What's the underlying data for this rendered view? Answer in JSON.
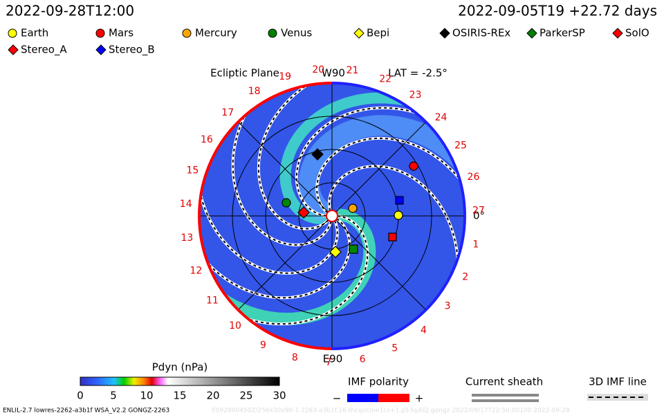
{
  "header": {
    "time": "2022-09-28T12:00",
    "run": "2022-09-05T19 +22.72 days"
  },
  "legend": [
    {
      "label": "Earth",
      "shape": "circle",
      "color": "#ffff00"
    },
    {
      "label": "Mars",
      "shape": "circle",
      "color": "#ff0000"
    },
    {
      "label": "Mercury",
      "shape": "circle",
      "color": "#ffa500"
    },
    {
      "label": "Venus",
      "shape": "circle",
      "color": "#008000"
    },
    {
      "label": "Bepi",
      "shape": "diamond",
      "color": "#ffff00"
    },
    {
      "label": "OSIRIS-REx",
      "shape": "diamond",
      "color": "#000000"
    },
    {
      "label": "ParkerSP",
      "shape": "diamond",
      "color": "#008000"
    },
    {
      "label": "SolO",
      "shape": "diamond",
      "color": "#ff0000"
    },
    {
      "label": "Stereo_A",
      "shape": "diamond",
      "color": "#ff0000"
    },
    {
      "label": "Stereo_B",
      "shape": "diamond",
      "color": "#0000ff"
    }
  ],
  "plot": {
    "title": "Ecliptic Plane",
    "top": "W90",
    "lat": "LAT = -2.5°",
    "bottom": "E90",
    "right": "0°",
    "longitudes": [
      "1",
      "2",
      "3",
      "4",
      "5",
      "6",
      "7",
      "8",
      "9",
      "10",
      "11",
      "12",
      "13",
      "14",
      "15",
      "16",
      "17",
      "18",
      "19",
      "20",
      "21",
      "22",
      "23",
      "24",
      "25",
      "26",
      "27"
    ]
  },
  "colorbar": {
    "title": "Pdyn (nPa)",
    "ticks": [
      "0",
      "5",
      "10",
      "15",
      "20",
      "25",
      "30"
    ]
  },
  "imf": {
    "title": "IMF polarity",
    "minus": "−",
    "plus": "+"
  },
  "sheath": {
    "title": "Current sheath"
  },
  "imfline": {
    "title": "3D IMF line"
  },
  "footer": {
    "left": "ENLIL-2.7 lowres-2262-a3b1f WSA_V2.2 GONGZ-2263",
    "right": "E092800450Z/256x30x90-1 2263-a3b1f.16-thcip/cme1cs+1.p53qdd2.gongz-2022/09/17T22:50:00100   2022-09-28"
  }
}
